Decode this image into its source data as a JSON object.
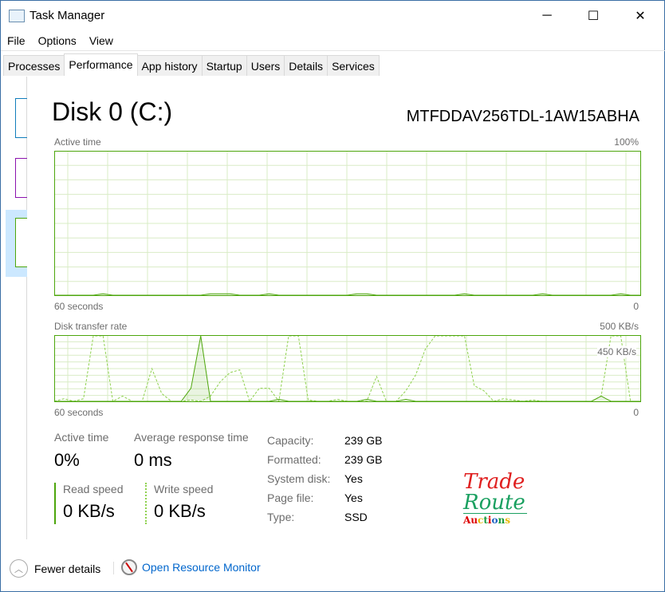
{
  "window": {
    "title": "Task Manager",
    "minimize": "─",
    "maximize": "☐",
    "close": "✕"
  },
  "menu": [
    "File",
    "Options",
    "View"
  ],
  "tabs": [
    "Processes",
    "Performance",
    "App history",
    "Startup",
    "Users",
    "Details",
    "Services"
  ],
  "active_tab": "Performance",
  "disk": {
    "title": "Disk 0 (C:)",
    "model": "MTFDDAV256TDL-1AW15ABHA"
  },
  "active_chart": {
    "label": "Active time",
    "max": "100%",
    "xleft": "60 seconds",
    "xright": "0"
  },
  "transfer_chart": {
    "label": "Disk transfer rate",
    "max": "500 KB/s",
    "secondary": "450 KB/s",
    "xleft": "60 seconds",
    "xright": "0"
  },
  "chart_data": [
    {
      "type": "line",
      "title": "Active time",
      "ylim": [
        0,
        100
      ],
      "x_range_seconds": [
        60,
        0
      ],
      "values": [
        0,
        0,
        0,
        0,
        0,
        1,
        0,
        0,
        0,
        0,
        0,
        0,
        0,
        0,
        0,
        0,
        1,
        1,
        1,
        0,
        0,
        0,
        1,
        0,
        0,
        0,
        0,
        0,
        0,
        0,
        0,
        1,
        1,
        0,
        0,
        0,
        0,
        0,
        0,
        0,
        0,
        0,
        1,
        0,
        0,
        0,
        0,
        0,
        0,
        0,
        1,
        0,
        0,
        0,
        0,
        0,
        0,
        0,
        1,
        0,
        0
      ]
    },
    {
      "type": "line",
      "title": "Disk transfer rate",
      "ylim": [
        0,
        500
      ],
      "unit": "KB/s",
      "series": [
        {
          "name": "Write speed",
          "style": "dashed",
          "values": [
            0,
            20,
            0,
            20,
            500,
            500,
            0,
            40,
            0,
            0,
            250,
            60,
            0,
            0,
            10,
            0,
            40,
            150,
            220,
            240,
            0,
            100,
            100,
            0,
            500,
            500,
            10,
            0,
            0,
            15,
            0,
            0,
            0,
            190,
            0,
            0,
            80,
            200,
            400,
            500,
            500,
            500,
            500,
            120,
            80,
            0,
            20,
            10,
            0,
            10,
            0,
            0,
            0,
            0,
            0,
            0,
            40,
            500,
            500,
            0,
            0
          ]
        },
        {
          "name": "Read speed",
          "style": "solid",
          "values": [
            0,
            0,
            0,
            0,
            0,
            0,
            0,
            0,
            0,
            0,
            0,
            0,
            0,
            0,
            100,
            500,
            0,
            0,
            0,
            0,
            0,
            0,
            0,
            15,
            0,
            0,
            0,
            0,
            0,
            0,
            0,
            0,
            15,
            0,
            0,
            0,
            15,
            0,
            0,
            0,
            0,
            0,
            0,
            0,
            0,
            0,
            0,
            0,
            0,
            0,
            0,
            0,
            0,
            0,
            0,
            0,
            40,
            0,
            0,
            0,
            0
          ]
        }
      ]
    }
  ],
  "stats": {
    "active_time": {
      "label": "Active time",
      "value": "0%"
    },
    "avg_response": {
      "label": "Average response time",
      "value": "0 ms"
    },
    "read": {
      "label": "Read speed",
      "value": "0 KB/s"
    },
    "write": {
      "label": "Write speed",
      "value": "0 KB/s"
    }
  },
  "props": [
    {
      "k": "Capacity:",
      "v": "239 GB"
    },
    {
      "k": "Formatted:",
      "v": "239 GB"
    },
    {
      "k": "System disk:",
      "v": "Yes"
    },
    {
      "k": "Page file:",
      "v": "Yes"
    },
    {
      "k": "Type:",
      "v": "SSD"
    }
  ],
  "watermark": "Trade Route Auctions",
  "footer": {
    "fewer": "Fewer details",
    "monitor": "Open Resource Monitor"
  },
  "colors": {
    "accent": "#4da60c",
    "light": "#8fd14f",
    "link": "#0066cc"
  }
}
